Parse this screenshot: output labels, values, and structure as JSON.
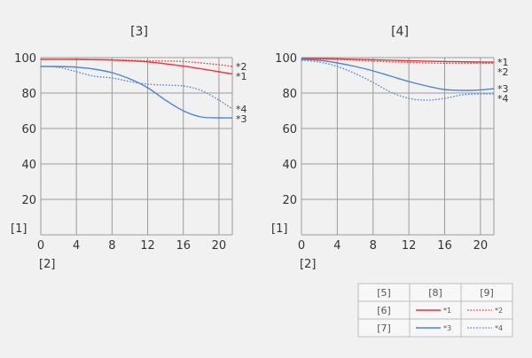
{
  "colors": {
    "red": "#e8373a",
    "blue": "#4d84d4",
    "grid": "#9a9a9a",
    "frame": "#9a9a9a"
  },
  "chart_data": [
    {
      "type": "line",
      "title": "[3]",
      "xlabel": "[2]",
      "ylabel": "[1]",
      "xlim": [
        0,
        21.5
      ],
      "ylim": [
        0,
        100
      ],
      "xticks": [
        0,
        4,
        8,
        12,
        16,
        20
      ],
      "yticks": [
        20,
        40,
        60,
        80,
        100
      ],
      "grid": true,
      "series": [
        {
          "name": "*1",
          "color": "red",
          "style": "solid",
          "x": [
            0,
            4,
            8,
            12,
            16,
            20,
            21.5
          ],
          "y": [
            99,
            99,
            98.6,
            97.6,
            95.2,
            92,
            90.8
          ]
        },
        {
          "name": "*2",
          "color": "red",
          "style": "dotted",
          "x": [
            0,
            4,
            8,
            12,
            16,
            20,
            21.5
          ],
          "y": [
            99,
            99,
            98.8,
            98.2,
            97.8,
            96,
            95
          ]
        },
        {
          "name": "*3",
          "color": "blue",
          "style": "solid",
          "x": [
            0,
            2,
            4,
            6,
            8,
            10,
            12,
            14,
            16,
            18,
            20,
            21.5
          ],
          "y": [
            95,
            95,
            94.6,
            93.5,
            91.5,
            88,
            83,
            76,
            70,
            66.5,
            66,
            66
          ]
        },
        {
          "name": "*4",
          "color": "blue",
          "style": "dotted",
          "x": [
            0,
            2,
            4,
            6,
            8,
            10,
            12,
            14,
            16,
            18,
            20,
            21.5
          ],
          "y": [
            95,
            94.5,
            92,
            89.5,
            88.5,
            86.5,
            85,
            84.5,
            84,
            81.5,
            76,
            71
          ]
        }
      ]
    },
    {
      "type": "line",
      "title": "[4]",
      "xlabel": "[2]",
      "ylabel": "[1]",
      "xlim": [
        0,
        21.5
      ],
      "ylim": [
        0,
        100
      ],
      "xticks": [
        0,
        4,
        8,
        12,
        16,
        20
      ],
      "yticks": [
        20,
        40,
        60,
        80,
        100
      ],
      "grid": true,
      "series": [
        {
          "name": "*1",
          "color": "red",
          "style": "solid",
          "x": [
            0,
            4,
            8,
            12,
            16,
            20,
            21.5
          ],
          "y": [
            99.5,
            99.3,
            98.8,
            98.2,
            97.8,
            97.5,
            97.5
          ]
        },
        {
          "name": "*2",
          "color": "red",
          "style": "dotted",
          "x": [
            0,
            4,
            8,
            12,
            16,
            20,
            21.5
          ],
          "y": [
            99.3,
            99,
            98,
            97.3,
            96.8,
            96.8,
            96.8
          ]
        },
        {
          "name": "*3",
          "color": "blue",
          "style": "solid",
          "x": [
            0,
            2,
            4,
            6,
            8,
            10,
            12,
            14,
            16,
            18,
            20,
            21.5
          ],
          "y": [
            99,
            98.5,
            97,
            95,
            92.5,
            89.5,
            86.5,
            84,
            82,
            81.5,
            81.8,
            82.5
          ]
        },
        {
          "name": "*4",
          "color": "blue",
          "style": "dotted",
          "x": [
            0,
            2,
            4,
            6,
            8,
            10,
            12,
            14,
            16,
            18,
            20,
            21.5
          ],
          "y": [
            98.5,
            97.5,
            95,
            91,
            86,
            80.5,
            77,
            76,
            77,
            79,
            79.5,
            79.5
          ]
        }
      ]
    }
  ],
  "legend_table": {
    "headers": [
      "[5]",
      "[8]",
      "[9]"
    ],
    "rows": [
      {
        "label": "[6]",
        "solid": "*1",
        "dotted": "*2",
        "color": "red"
      },
      {
        "label": "[7]",
        "solid": "*3",
        "dotted": "*4",
        "color": "blue"
      }
    ]
  }
}
